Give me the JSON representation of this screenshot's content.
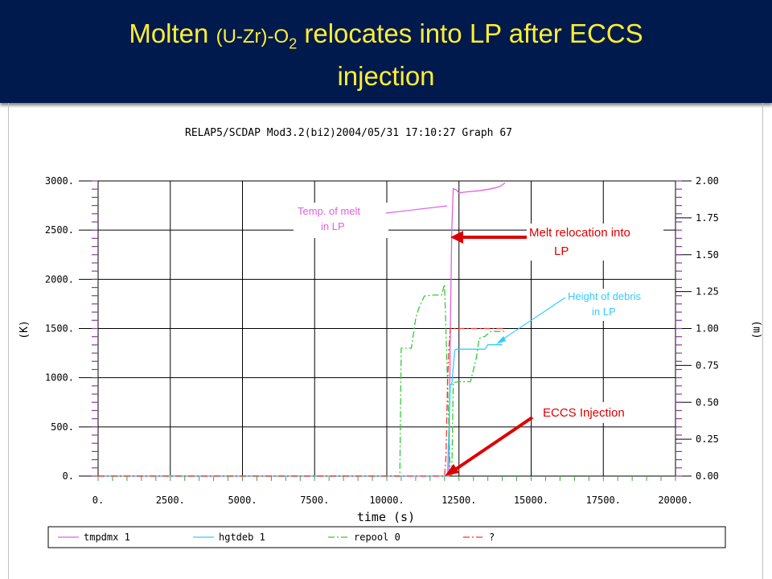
{
  "slide": {
    "title_main": "Molten",
    "title_species_open": "(U-Zr)-O",
    "title_subscript": "2",
    "title_rest": " relocates into LP after ECCS",
    "title_line2": "injection"
  },
  "chart_data": {
    "type": "line",
    "header": "RELAP5/SCDAP Mod3.2(bi2)2004/05/31    17:10:27     Graph  67",
    "xlabel": "time (s)",
    "ylabel_left": "(K)",
    "ylabel_right": "(m)",
    "xlim": [
      0,
      20000
    ],
    "ylim_left": [
      0,
      3000
    ],
    "ylim_right": [
      0,
      2.0
    ],
    "grid": true,
    "x_ticks": [
      0,
      2500,
      5000,
      7500,
      10000,
      12500,
      15000,
      17500,
      20000
    ],
    "x_tick_labels": [
      "0.",
      "2500.",
      "5000.",
      "7500.",
      "10000.",
      "12500.",
      "15000.",
      "17500.",
      "20000."
    ],
    "y_left_ticks": [
      0,
      500,
      1000,
      1500,
      2000,
      2500,
      3000
    ],
    "y_left_tick_labels": [
      "0.",
      "500.",
      "1000.",
      "1500.",
      "2000.",
      "2500.",
      "3000."
    ],
    "y_right_ticks": [
      0,
      0.25,
      0.5,
      0.75,
      1.0,
      1.25,
      1.5,
      1.75,
      2.0
    ],
    "y_right_tick_labels": [
      "0.00",
      "0.25",
      "0.50",
      "0.75",
      "1.00",
      "1.25",
      "1.50",
      "1.75",
      "2.00"
    ],
    "series": [
      {
        "name": "tmpdmx 1",
        "axis": "left",
        "color": "#e060e0",
        "dash": "solid",
        "x": [
          0,
          12000,
          12150,
          12200,
          12250,
          12300,
          12400,
          12500,
          12800,
          13200,
          13600,
          13900,
          14100
        ],
        "y": [
          0,
          0,
          0,
          1500,
          2500,
          2920,
          2910,
          2880,
          2890,
          2900,
          2920,
          2940,
          2980
        ]
      },
      {
        "name": "hgtdeb 1",
        "axis": "right",
        "color": "#33ccff",
        "dash": "solid",
        "x": [
          0,
          12100,
          12200,
          12250,
          12350,
          12400,
          12550,
          12700,
          12800,
          13400,
          13500,
          14000
        ],
        "y": [
          0,
          0,
          0.62,
          0.62,
          0.85,
          0.86,
          0.86,
          0.86,
          0.86,
          0.86,
          0.89,
          0.89
        ]
      },
      {
        "name": "repool 0",
        "axis": "left",
        "color": "#33cc33",
        "dash": "dashdot",
        "x": [
          0,
          10450,
          10500,
          10850,
          11000,
          11100,
          11300,
          11600,
          11900,
          12000,
          12200,
          12250,
          12300,
          12500,
          12900,
          13100,
          13200,
          13400,
          13600,
          14100
        ],
        "y": [
          0,
          0,
          1300,
          1300,
          1600,
          1700,
          1830,
          1840,
          1840,
          1950,
          0,
          0,
          950,
          960,
          960,
          1200,
          1400,
          1420,
          1470,
          1470
        ]
      },
      {
        "name": "?",
        "axis": "left",
        "color": "#ff3333",
        "dash": "dashdot",
        "x": [
          0,
          12000,
          12050,
          12100,
          12150,
          12200,
          12300,
          14100
        ],
        "y": [
          0,
          0,
          200,
          900,
          1300,
          1500,
          1500,
          1500
        ]
      }
    ],
    "annotations": [
      {
        "line1": "Temp. of melt",
        "line2": "in LP",
        "color": "#e060e0"
      },
      {
        "line1": "Melt relocation into",
        "line2": "LP",
        "color": "#dd0000"
      },
      {
        "line1": "Height of debris",
        "line2": "in LP",
        "color": "#33ccff"
      },
      {
        "line1": "ECCS Injection",
        "line2": "",
        "color": "#dd0000"
      }
    ]
  }
}
